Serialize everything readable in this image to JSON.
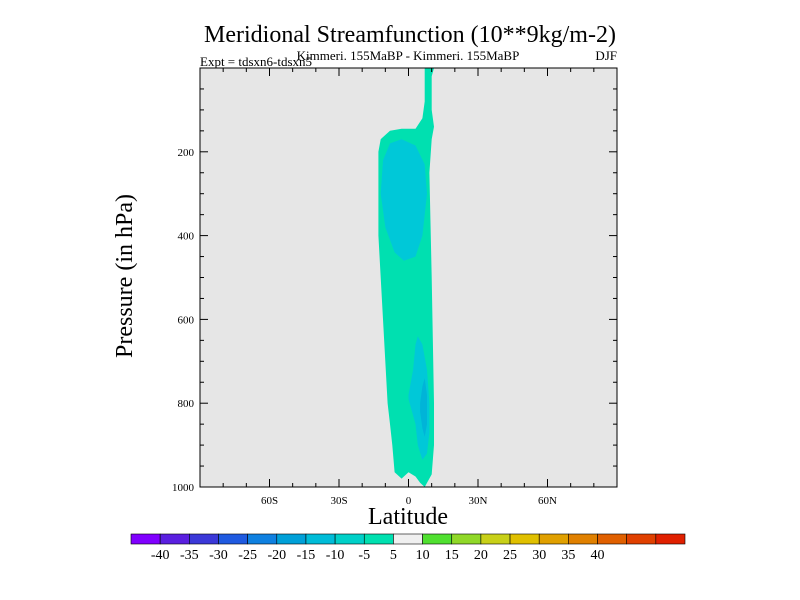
{
  "chart_data": {
    "type": "contour",
    "title": "Meridional Streamfunction (10**9kg/m-2)",
    "subtitle_left": "Expt = tdsxn6-tdsxn5",
    "subtitle_center": "Kimmeri. 155MaBP - Kimmeri. 155MaBP",
    "subtitle_right": "DJF",
    "xlabel": "Latitude",
    "ylabel": "Pressure (in hPa)",
    "xlim": [
      -90,
      90
    ],
    "ylim": [
      1000,
      0
    ],
    "x_ticks": [
      {
        "value": -60,
        "label": "60S"
      },
      {
        "value": -30,
        "label": "30S"
      },
      {
        "value": 0,
        "label": "0"
      },
      {
        "value": 30,
        "label": "30N"
      },
      {
        "value": 60,
        "label": "60N"
      }
    ],
    "y_ticks": [
      {
        "value": 200,
        "label": "200"
      },
      {
        "value": 400,
        "label": "400"
      },
      {
        "value": 600,
        "label": "600"
      },
      {
        "value": 800,
        "label": "800"
      },
      {
        "value": 1000,
        "label": "1000"
      }
    ],
    "background_color": "#e6e6e6",
    "contour_regions": [
      {
        "level": "-10 to -5",
        "color": "#00e0b0",
        "outline": [
          [
            7,
            0
          ],
          [
            11,
            0
          ],
          [
            10,
            20
          ],
          [
            10,
            100
          ],
          [
            11,
            140
          ],
          [
            10,
            170
          ],
          [
            9,
            250
          ],
          [
            10,
            500
          ],
          [
            11,
            800
          ],
          [
            11,
            900
          ],
          [
            10,
            970
          ],
          [
            7,
            1000
          ],
          [
            5,
            990
          ],
          [
            3,
            975
          ],
          [
            0,
            965
          ],
          [
            -3,
            980
          ],
          [
            -6,
            965
          ],
          [
            -7,
            900
          ],
          [
            -8,
            850
          ],
          [
            -9,
            800
          ],
          [
            -10,
            700
          ],
          [
            -11,
            600
          ],
          [
            -12,
            500
          ],
          [
            -13,
            400
          ],
          [
            -13,
            300
          ],
          [
            -13,
            200
          ],
          [
            -12,
            170
          ],
          [
            -8,
            150
          ],
          [
            -3,
            145
          ],
          [
            0,
            145
          ],
          [
            3,
            145
          ],
          [
            6,
            120
          ],
          [
            7,
            80
          ],
          [
            7,
            0
          ]
        ]
      },
      {
        "level": "-15 to -10",
        "color": "#00c8d8",
        "outline": [
          [
            -3,
            170
          ],
          [
            3,
            185
          ],
          [
            7,
            230
          ],
          [
            8,
            300
          ],
          [
            6,
            400
          ],
          [
            3,
            450
          ],
          [
            -2,
            460
          ],
          [
            -6,
            440
          ],
          [
            -10,
            380
          ],
          [
            -12,
            300
          ],
          [
            -11,
            220
          ],
          [
            -8,
            180
          ]
        ]
      },
      {
        "level": "-15 to -10",
        "color": "#00c8d8",
        "outline": [
          [
            0,
            780
          ],
          [
            2,
            720
          ],
          [
            3,
            660
          ],
          [
            4,
            640
          ],
          [
            6,
            660
          ],
          [
            8,
            720
          ],
          [
            9,
            800
          ],
          [
            9,
            870
          ],
          [
            8,
            920
          ],
          [
            6,
            935
          ],
          [
            4,
            900
          ],
          [
            3,
            850
          ],
          [
            0,
            790
          ]
        ]
      },
      {
        "level": "-20 to -15",
        "color": "#00b4d8",
        "outline": [
          [
            5,
            800
          ],
          [
            6,
            760
          ],
          [
            7,
            740
          ],
          [
            8,
            780
          ],
          [
            8,
            850
          ],
          [
            7,
            880
          ],
          [
            6,
            860
          ],
          [
            5,
            820
          ]
        ]
      }
    ],
    "colorbar": {
      "colors": [
        "#8000ff",
        "#5a1fe0",
        "#3b38d8",
        "#1f5ae0",
        "#0f80e0",
        "#00a0d8",
        "#00bcd8",
        "#00d0c8",
        "#00e0b0",
        "#f0f0f0",
        "#50e030",
        "#90d828",
        "#c8d018",
        "#e0c000",
        "#e0a000",
        "#e08000",
        "#e06000",
        "#e04000",
        "#e02000"
      ],
      "labels": [
        "-40",
        "-35",
        "-30",
        "-25",
        "-20",
        "-15",
        "-10",
        "-5",
        "5",
        "10",
        "15",
        "20",
        "25",
        "30",
        "35",
        "40"
      ]
    }
  }
}
